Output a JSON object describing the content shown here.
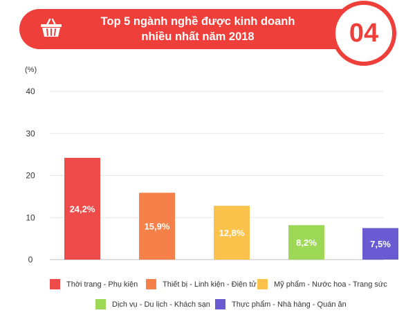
{
  "header": {
    "title_line1": "Top 5 ngành nghề được kinh doanh",
    "title_line2": "nhiều nhất năm 2018",
    "badge": "04",
    "icon": "basket-icon"
  },
  "chart_data": {
    "type": "bar",
    "ylabel": "(%)",
    "ylim": [
      0,
      40
    ],
    "yticks": [
      0,
      10,
      20,
      30,
      40
    ],
    "grid": true,
    "categories": [
      "Thời trang - Phụ kiện",
      "Thiết bị - Linh kiện - Điện tử",
      "Mỹ phẩm - Nước hoa - Trang sức",
      "Dịch vụ - Du lịch - Khách sạn",
      "Thực phẩm - Nhà hàng - Quán ăn"
    ],
    "values": [
      24.2,
      15.9,
      12.8,
      8.2,
      7.5
    ],
    "value_labels": [
      "24,2%",
      "15,9%",
      "12,8%",
      "8,2%",
      "7,5%"
    ],
    "colors": [
      "#ee4b4b",
      "#f5804a",
      "#fbc24c",
      "#9dd856",
      "#6a5bd3"
    ],
    "legend_position": "bottom"
  }
}
